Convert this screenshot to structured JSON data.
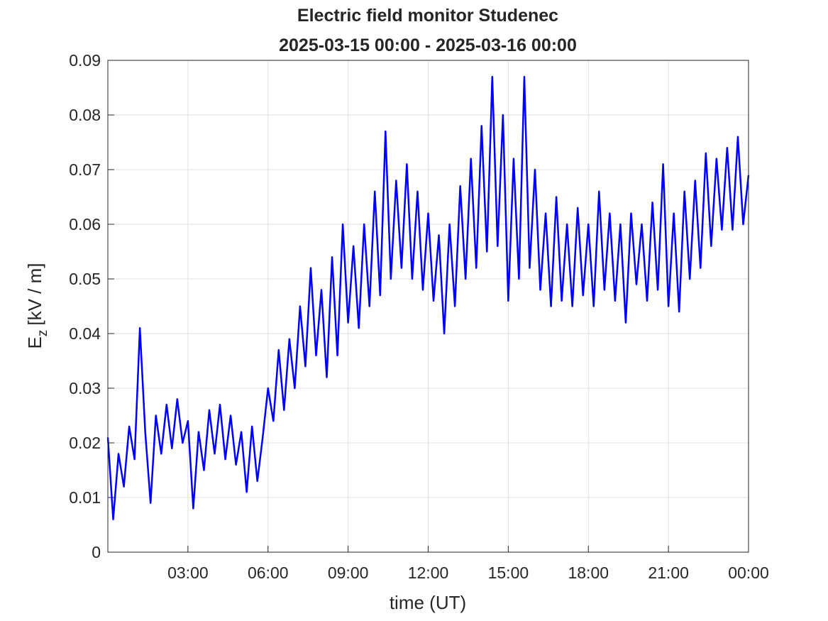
{
  "chart_data": {
    "type": "line",
    "title": [
      "Electric field monitor Studenec",
      "2025-03-15 00:00 - 2025-03-16 00:00"
    ],
    "xlabel": "time (UT)",
    "ylabel": {
      "main": "E",
      "sub": "z",
      "unit": "[kV / m]"
    },
    "x": [
      0,
      0.2,
      0.4,
      0.6,
      0.8,
      1,
      1.2,
      1.4,
      1.6,
      1.8,
      2,
      2.2,
      2.4,
      2.6,
      2.8,
      3,
      3.2,
      3.4,
      3.6,
      3.8,
      4,
      4.2,
      4.4,
      4.6,
      4.8,
      5,
      5.2,
      5.4,
      5.6,
      5.8,
      6,
      6.2,
      6.4,
      6.6,
      6.8,
      7,
      7.2,
      7.4,
      7.6,
      7.8,
      8,
      8.2,
      8.4,
      8.6,
      8.8,
      9,
      9.2,
      9.4,
      9.6,
      9.8,
      10,
      10.2,
      10.4,
      10.6,
      10.8,
      11,
      11.2,
      11.4,
      11.6,
      11.8,
      12,
      12.2,
      12.4,
      12.6,
      12.8,
      13,
      13.2,
      13.4,
      13.6,
      13.8,
      14,
      14.2,
      14.4,
      14.6,
      14.8,
      15,
      15.2,
      15.4,
      15.6,
      15.8,
      16,
      16.2,
      16.4,
      16.6,
      16.8,
      17,
      17.2,
      17.4,
      17.6,
      17.8,
      18,
      18.2,
      18.4,
      18.6,
      18.8,
      19,
      19.2,
      19.4,
      19.6,
      19.8,
      20,
      20.2,
      20.4,
      20.6,
      20.8,
      21,
      21.2,
      21.4,
      21.6,
      21.8,
      22,
      22.2,
      22.4,
      22.6,
      22.8,
      23,
      23.2,
      23.4,
      23.6,
      23.8,
      24
    ],
    "series": [
      {
        "color": "#0000ff",
        "values": [
          0.021,
          0.006,
          0.018,
          0.012,
          0.023,
          0.017,
          0.041,
          0.022,
          0.009,
          0.025,
          0.018,
          0.027,
          0.019,
          0.028,
          0.02,
          0.024,
          0.008,
          0.022,
          0.015,
          0.026,
          0.018,
          0.027,
          0.017,
          0.025,
          0.016,
          0.022,
          0.011,
          0.023,
          0.013,
          0.021,
          0.03,
          0.024,
          0.037,
          0.026,
          0.039,
          0.03,
          0.045,
          0.034,
          0.052,
          0.036,
          0.048,
          0.032,
          0.054,
          0.036,
          0.06,
          0.042,
          0.056,
          0.041,
          0.06,
          0.045,
          0.066,
          0.047,
          0.077,
          0.05,
          0.068,
          0.052,
          0.071,
          0.05,
          0.066,
          0.048,
          0.062,
          0.046,
          0.058,
          0.04,
          0.06,
          0.045,
          0.067,
          0.05,
          0.072,
          0.052,
          0.078,
          0.055,
          0.087,
          0.056,
          0.08,
          0.046,
          0.072,
          0.05,
          0.087,
          0.052,
          0.07,
          0.048,
          0.062,
          0.045,
          0.065,
          0.046,
          0.06,
          0.045,
          0.063,
          0.047,
          0.06,
          0.045,
          0.066,
          0.048,
          0.062,
          0.046,
          0.06,
          0.042,
          0.062,
          0.049,
          0.06,
          0.046,
          0.064,
          0.048,
          0.071,
          0.045,
          0.062,
          0.044,
          0.066,
          0.05,
          0.068,
          0.052,
          0.073,
          0.056,
          0.072,
          0.059,
          0.074,
          0.059,
          0.076,
          0.06,
          0.069
        ]
      }
    ],
    "xlim": [
      0,
      24
    ],
    "xticks": [
      {
        "value": 3,
        "label": "03:00"
      },
      {
        "value": 6,
        "label": "06:00"
      },
      {
        "value": 9,
        "label": "09:00"
      },
      {
        "value": 12,
        "label": "12:00"
      },
      {
        "value": 15,
        "label": "15:00"
      },
      {
        "value": 18,
        "label": "18:00"
      },
      {
        "value": 21,
        "label": "21:00"
      },
      {
        "value": 24,
        "label": "00:00"
      }
    ],
    "ylim": [
      0,
      0.09
    ],
    "yticks": [
      0,
      0.01,
      0.02,
      0.03,
      0.04,
      0.05,
      0.06,
      0.07,
      0.08,
      0.09
    ],
    "grid": true
  }
}
